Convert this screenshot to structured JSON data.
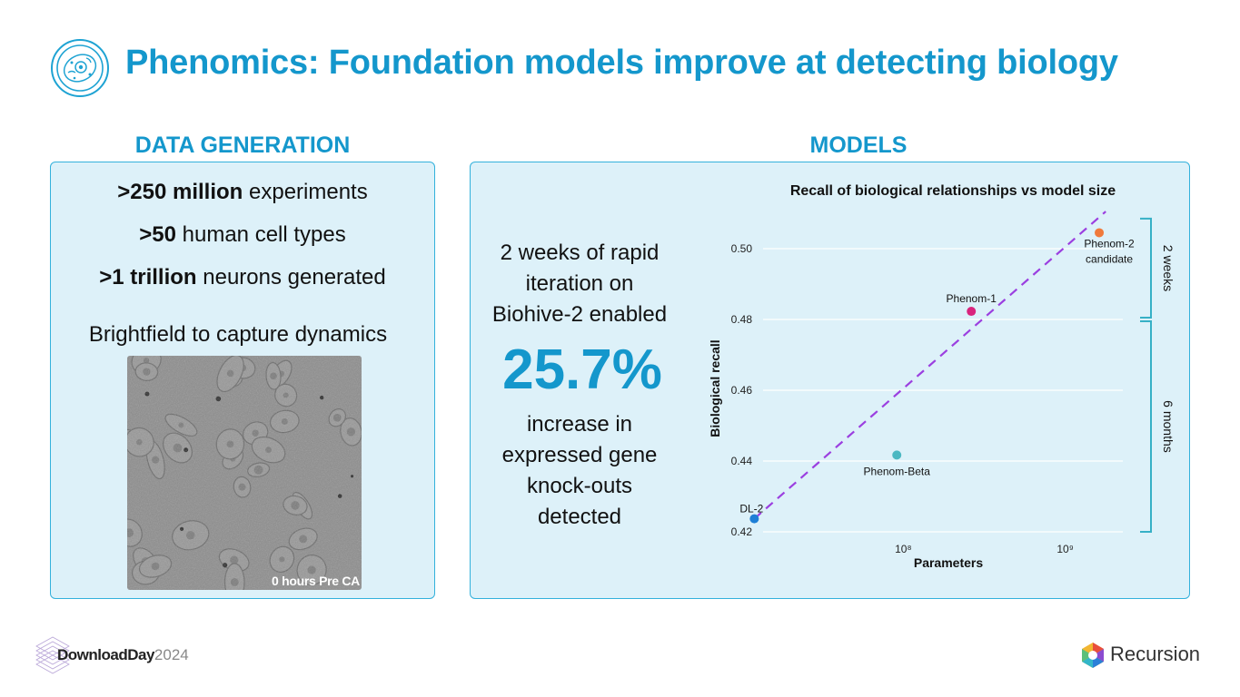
{
  "header": {
    "title": "Phenomics: Foundation models improve at detecting biology",
    "icon": "cell-icon"
  },
  "data_generation": {
    "heading": "DATA GENERATION",
    "stats": [
      {
        "bold": ">250 million",
        "rest": " experiments"
      },
      {
        "bold": ">50",
        "rest": " human cell types"
      },
      {
        "bold": ">1 trillion",
        "rest": " neurons generated"
      }
    ],
    "brightfield_title": "Brightfield to capture dynamics",
    "image_caption": "0 hours Pre CA"
  },
  "models": {
    "heading": "MODELS",
    "intro_lines": [
      "2 weeks of rapid",
      "iteration on",
      "Biohive-2 enabled"
    ],
    "headline_value": "25.7%",
    "outro_lines": [
      "increase in",
      "expressed gene",
      "knock-outs",
      "detected"
    ]
  },
  "chart_data": {
    "type": "scatter",
    "title": "Recall of biological relationships vs model size",
    "xlabel": "Parameters",
    "ylabel": "Biological recall",
    "x_scale": "log",
    "xlim_log10": [
      7.05,
      9.35
    ],
    "x_ticks": [
      {
        "log10": 8,
        "label": "10⁸"
      },
      {
        "log10": 9,
        "label": "10⁹"
      }
    ],
    "ylim": [
      0.42,
      0.5
    ],
    "y_ticks": [
      0.42,
      0.44,
      0.46,
      0.48,
      0.5
    ],
    "y_tick_labels": [
      "0.42",
      "0.44",
      "0.46",
      "0.48",
      "0.50"
    ],
    "grid": true,
    "points": [
      {
        "name": "DL-2",
        "log10_params": 7.08,
        "recall": 0.4237,
        "color": "#1e7fd6"
      },
      {
        "name": "Phenom-Beta",
        "log10_params": 7.96,
        "recall": 0.4417,
        "color": "#4bb8c2"
      },
      {
        "name": "Phenom-1",
        "log10_params": 8.42,
        "recall": 0.4823,
        "color": "#d9247d"
      },
      {
        "name": "Phenom-2",
        "name2": "candidate",
        "log10_params": 9.21,
        "recall": 0.5045,
        "color": "#f07a3c"
      }
    ],
    "trend_line": {
      "from": {
        "log10_params": 7.08,
        "recall": 0.4237
      },
      "to": {
        "log10_params": 9.25,
        "recall": 0.5105
      },
      "color": "#9b3fe0",
      "style": "dashed"
    },
    "brackets": [
      {
        "label": "2 weeks",
        "from_recall": 0.4805,
        "to_recall": 0.5085
      },
      {
        "label": "6 months",
        "from_recall": 0.42,
        "to_recall": 0.4795
      }
    ],
    "bracket_color": "#36b0c6"
  },
  "footer": {
    "event_name": "DownloadDay",
    "event_year": "2024",
    "company": "Recursion"
  }
}
